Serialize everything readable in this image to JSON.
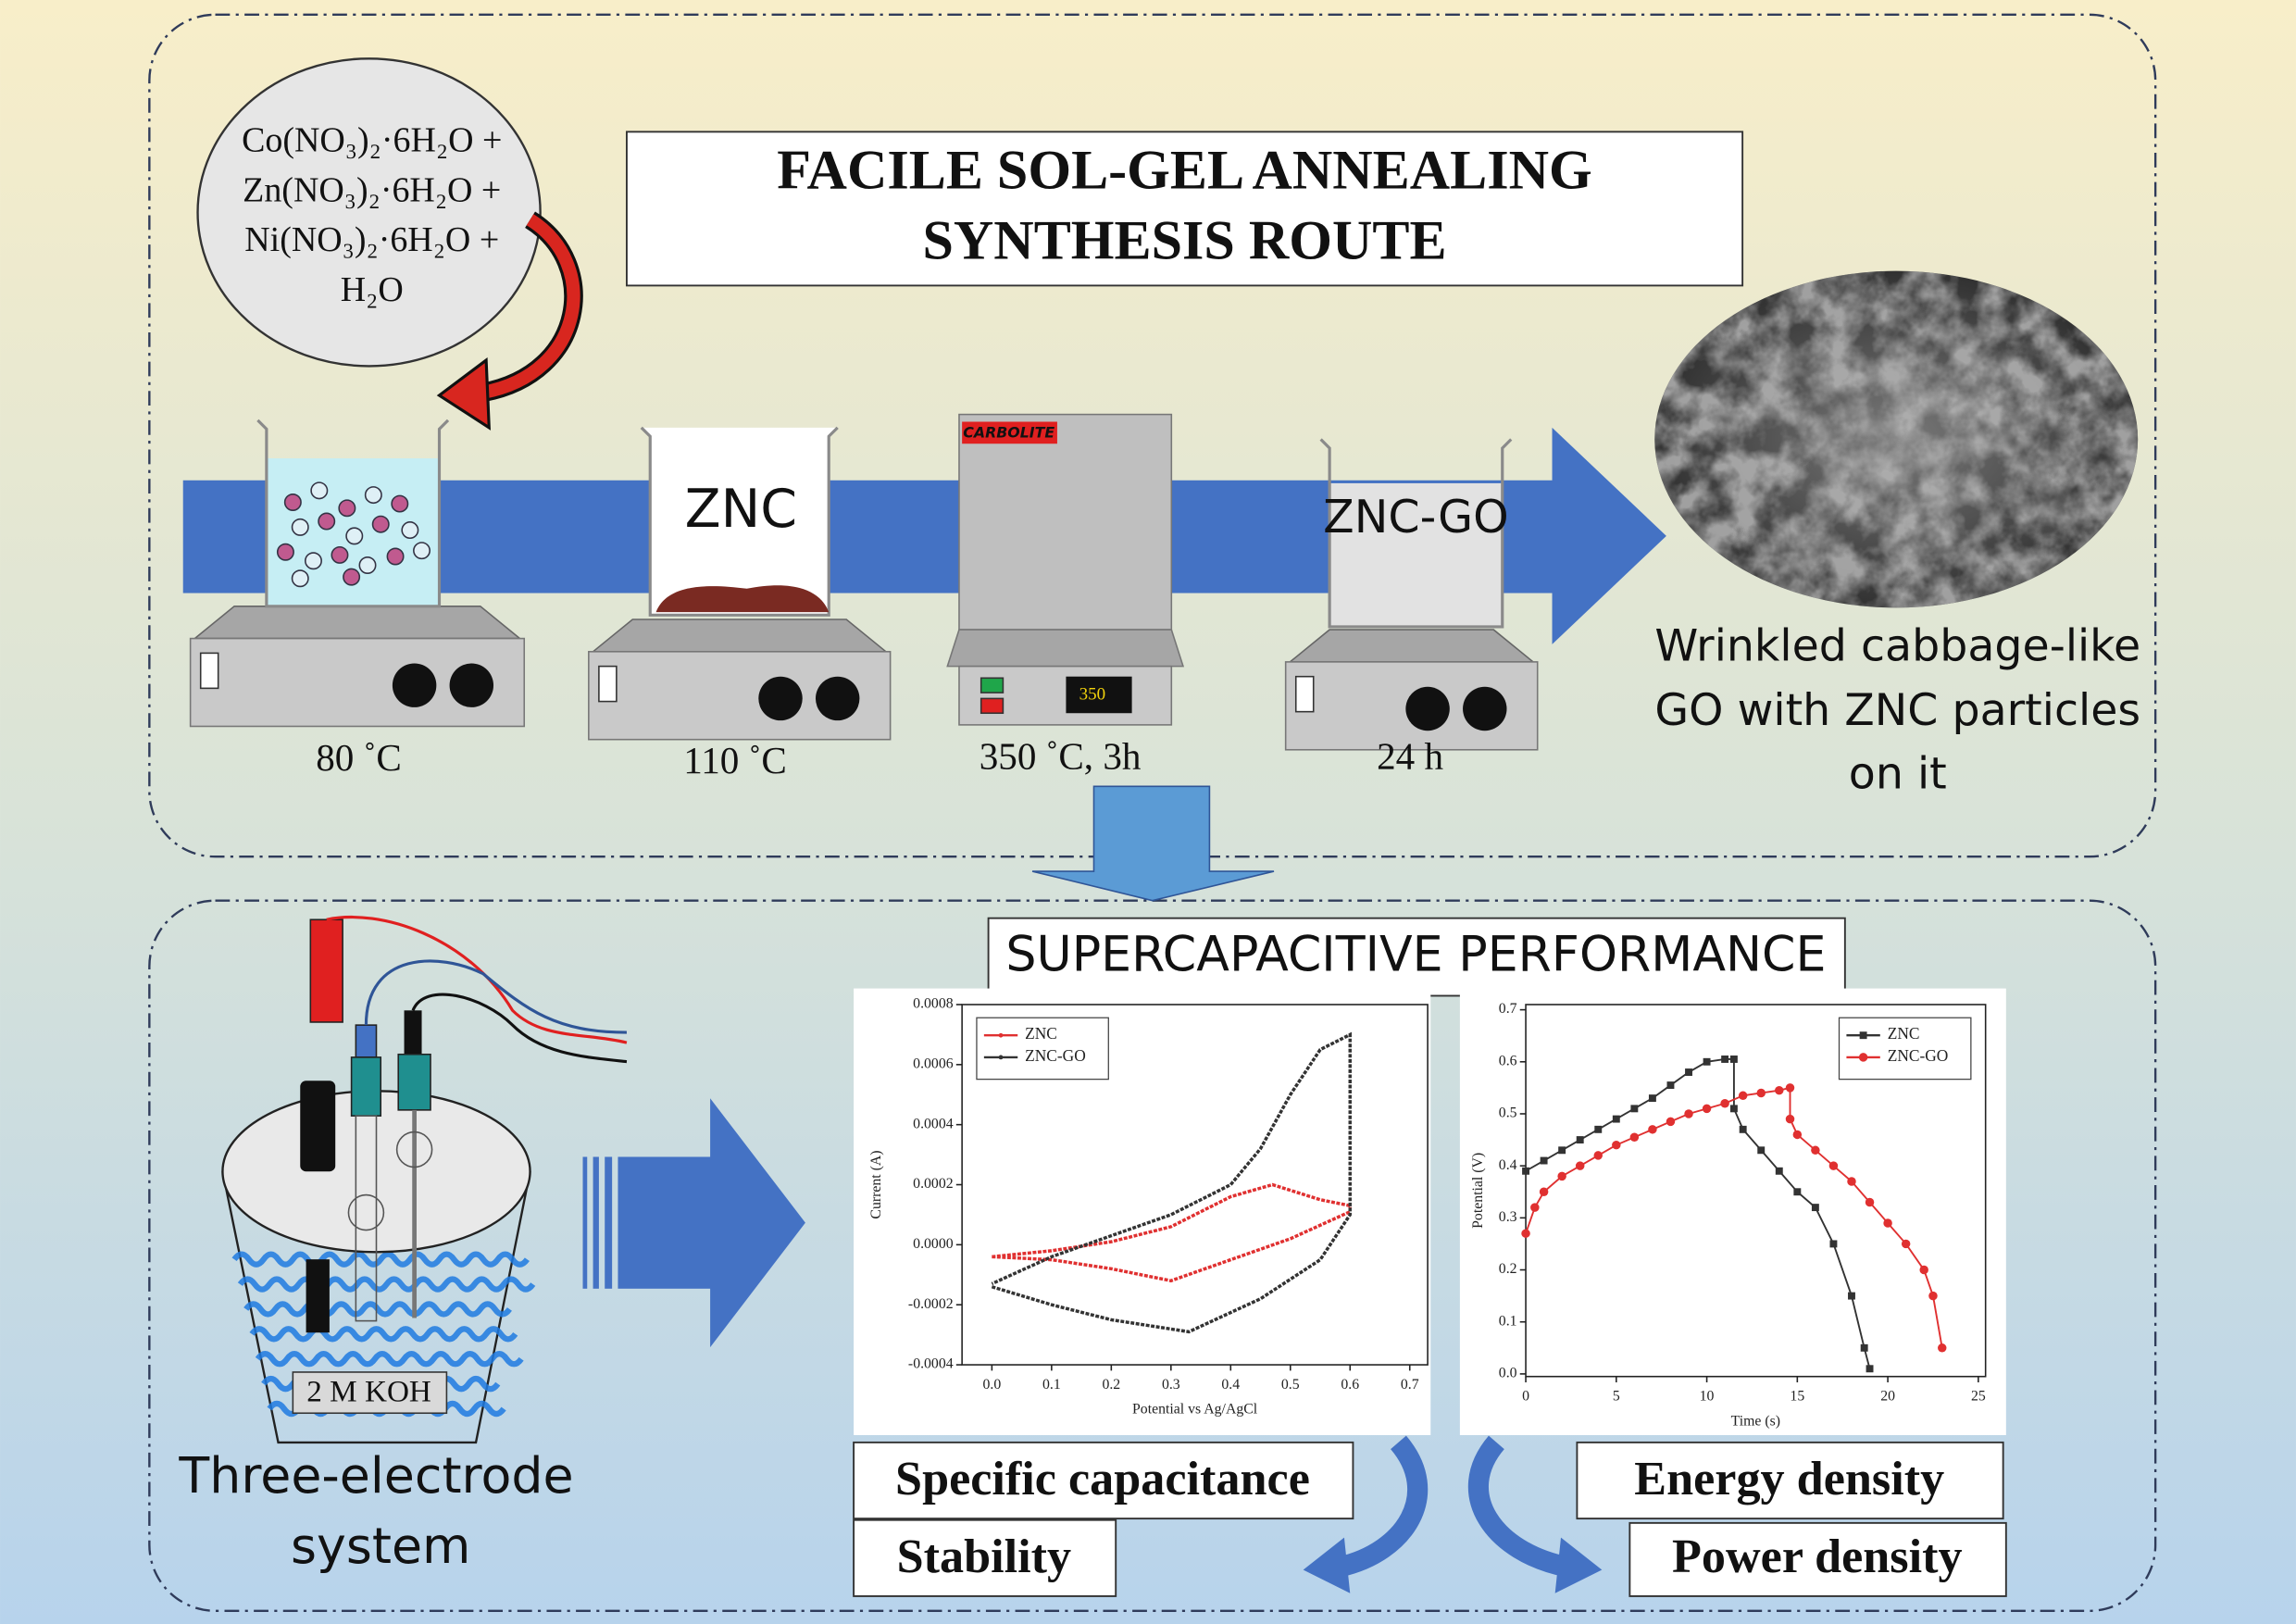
{
  "precursor": [
    "Co(NO₃)₂·6H₂O +",
    "Zn(NO₃)₂·6H₂O +",
    "Ni(NO₃)₂·6H₂O +",
    "H₂O"
  ],
  "title": [
    "FACILE SOL-GEL ANNEALING",
    "SYNTHESIS ROUTE"
  ],
  "steps": [
    {
      "condition": "80 ˚C"
    },
    {
      "label": "ZNC",
      "condition": "110 ˚C"
    },
    {
      "brand": "CARBOLITE",
      "display": "350",
      "condition": "350 ˚C, 3h"
    },
    {
      "label": "ZNC-GO",
      "condition": "24 h"
    }
  ],
  "product": [
    "Wrinkled cabbage-like",
    "GO with ZNC particles",
    "on it"
  ],
  "performance_title": "SUPERCAPACITIVE PERFORMANCE",
  "cell": {
    "electrolyte": "2 M KOH",
    "caption": [
      "Three-electrode",
      "system"
    ]
  },
  "metrics": [
    "Specific capacitance",
    "Stability",
    "Energy density",
    "Power density"
  ],
  "chart_data": [
    {
      "type": "line",
      "x_label": "Potential vs Ag/AgCl",
      "y_label": "Current (A)",
      "xlim": [
        -0.05,
        0.73
      ],
      "ylim": [
        -0.0004,
        0.0008
      ],
      "xticks": [
        {
          "value": 0,
          "label": "0.0"
        },
        0.1,
        0.2,
        0.3,
        0.4,
        0.5,
        0.6,
        0.7
      ],
      "yticks": [
        -0.0004,
        -0.0002,
        {
          "value": 0,
          "label": "0.0000"
        },
        0.0002,
        0.0004,
        0.0006,
        0.0008
      ],
      "legend": "upper left",
      "series": [
        {
          "name": "ZNC",
          "color": "#e03030",
          "x": [
            0,
            0.1,
            0.2,
            0.3,
            0.4,
            0.47,
            0.55,
            0.6,
            0.6,
            0.5,
            0.4,
            0.3,
            0.2,
            0.1,
            0
          ],
          "values": [
            -4e-05,
            -2e-05,
            1e-05,
            6e-05,
            0.00016,
            0.0002,
            0.00015,
            0.00013,
            0.00011,
            2e-05,
            -5e-05,
            -0.00012,
            -8e-05,
            -5e-05,
            -4e-05
          ]
        },
        {
          "name": "ZNC-GO",
          "color": "#333333",
          "x": [
            0,
            0.1,
            0.2,
            0.33,
            0.45,
            0.55,
            0.6,
            0.6,
            0.55,
            0.5,
            0.45,
            0.4,
            0.3,
            0.2,
            0.1,
            0
          ],
          "values": [
            -0.00014,
            -0.0002,
            -0.00025,
            -0.00029,
            -0.00018,
            -5e-05,
            0.0001,
            0.0007,
            0.00065,
            0.0005,
            0.00032,
            0.0002,
            0.0001,
            3e-05,
            -4e-05,
            -0.00013
          ]
        }
      ]
    },
    {
      "type": "line",
      "x_label": "Time (s)",
      "y_label": "Potential (V)",
      "xlim": [
        0,
        25.4
      ],
      "ylim": [
        -0.005,
        0.71
      ],
      "xticks": [
        0,
        5,
        10,
        15,
        20,
        25
      ],
      "yticks": [
        {
          "value": 0,
          "label": "0.0"
        },
        0.1,
        0.2,
        0.3,
        0.4,
        0.5,
        0.6,
        0.7
      ],
      "legend": "upper right",
      "series": [
        {
          "name": "ZNC",
          "color": "#333333",
          "marker": "square",
          "x": [
            0,
            1,
            2,
            3,
            4,
            5,
            6,
            7,
            8,
            9,
            10,
            11,
            11.5,
            11.5,
            12,
            13,
            14,
            15,
            16,
            17,
            18,
            18.7,
            19
          ],
          "values": [
            0.39,
            0.41,
            0.43,
            0.45,
            0.47,
            0.49,
            0.51,
            0.53,
            0.555,
            0.58,
            0.6,
            0.605,
            0.605,
            0.51,
            0.47,
            0.43,
            0.39,
            0.35,
            0.32,
            0.25,
            0.15,
            0.05,
            0.01
          ]
        },
        {
          "name": "ZNC-GO",
          "color": "#e03030",
          "marker": "circle",
          "x": [
            0,
            0.5,
            1,
            2,
            3,
            4,
            5,
            6,
            7,
            8,
            9,
            10,
            11,
            12,
            13,
            14,
            14.6,
            14.6,
            15,
            16,
            17,
            18,
            19,
            20,
            21,
            22,
            22.5,
            23
          ],
          "values": [
            0.27,
            0.32,
            0.35,
            0.38,
            0.4,
            0.42,
            0.44,
            0.455,
            0.47,
            0.485,
            0.5,
            0.51,
            0.52,
            0.535,
            0.54,
            0.545,
            0.55,
            0.49,
            0.46,
            0.43,
            0.4,
            0.37,
            0.33,
            0.29,
            0.25,
            0.2,
            0.15,
            0.05
          ]
        }
      ]
    }
  ]
}
